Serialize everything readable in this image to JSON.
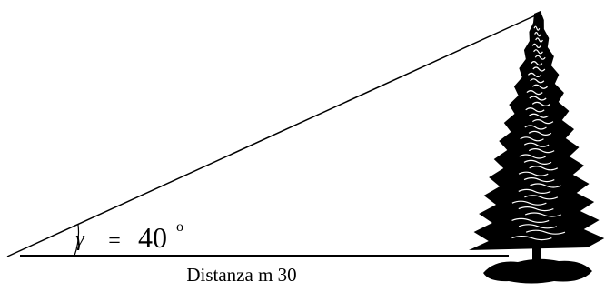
{
  "angle_label": {
    "symbol": "γ",
    "equals": "=",
    "value": "40",
    "degree": "o"
  },
  "distance_label": "Distanza m 30"
}
